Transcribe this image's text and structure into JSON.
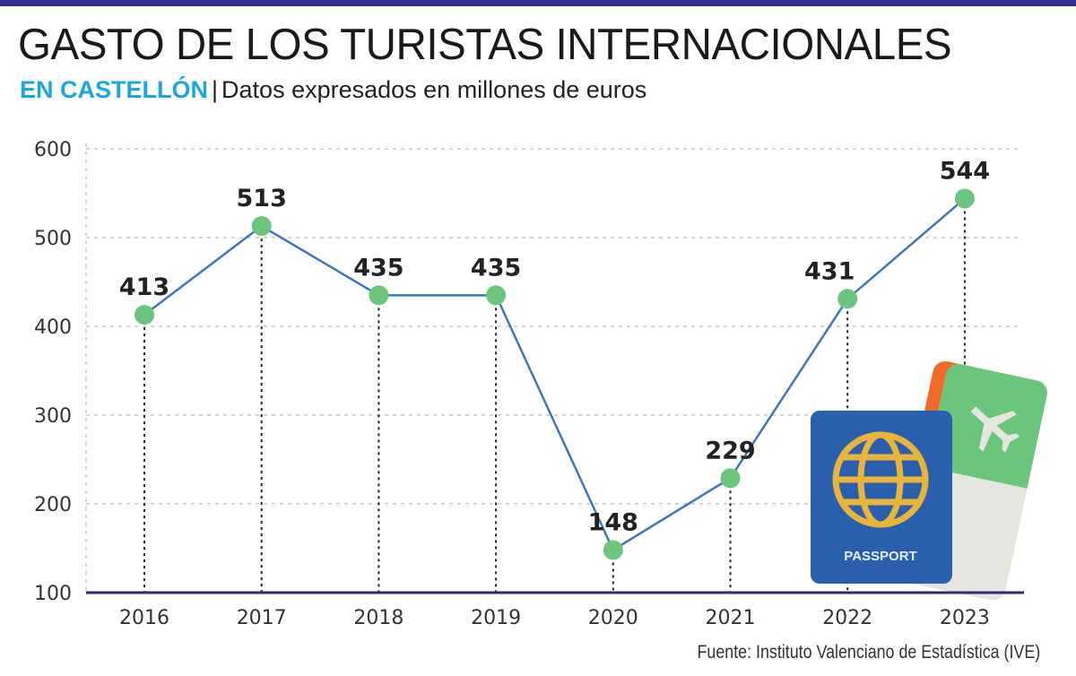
{
  "header": {
    "title": "GASTO DE LOS TURISTAS INTERNACIONALES",
    "subtitle_accent": "EN CASTELLÓN",
    "subtitle_separator": "|",
    "subtitle_text": "Datos expresados en millones de euros"
  },
  "source": "Fuente: Instituto Valenciano de Estadística (IVE)",
  "illustration": {
    "passport_label": "PASSPORT",
    "icons": [
      "passport-icon",
      "globe-icon",
      "boarding-pass-icon",
      "airplane-icon"
    ]
  },
  "colors": {
    "top_bar": "#2e3192",
    "accent": "#1ba6df",
    "line": "#3b78b8",
    "marker": "#6cc57c",
    "axis": "#2e2a78"
  },
  "chart_data": {
    "type": "line",
    "title": "GASTO DE LOS TURISTAS INTERNACIONALES EN CASTELLÓN",
    "xlabel": "",
    "ylabel": "",
    "categories": [
      "2016",
      "2017",
      "2018",
      "2019",
      "2020",
      "2021",
      "2022",
      "2023"
    ],
    "values": [
      413,
      513,
      435,
      435,
      148,
      229,
      431,
      544
    ],
    "ylim": [
      100,
      600
    ],
    "yticks": [
      100,
      200,
      300,
      400,
      500,
      600
    ],
    "grid": "horizontal dashed",
    "legend": "none",
    "data_labels": true
  }
}
